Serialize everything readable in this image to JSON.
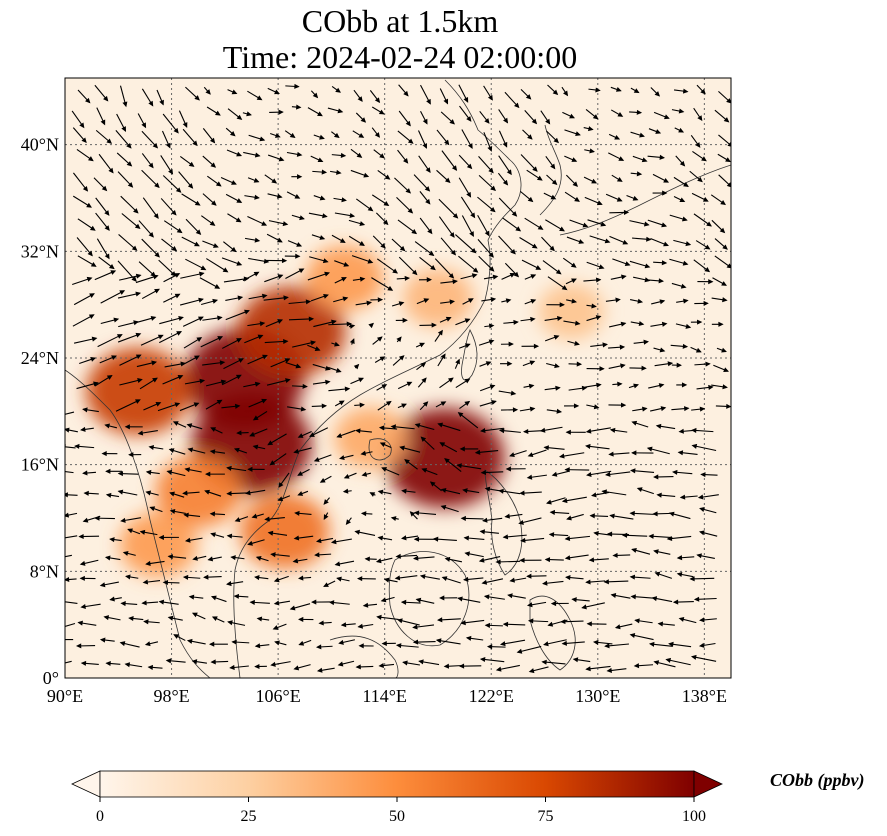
{
  "title_line1": "CObb at 1.5km",
  "title_line2": "Time: 2024-02-24 02:00:00",
  "map": {
    "lon_range": [
      90,
      140
    ],
    "lat_range": [
      0,
      45
    ],
    "lon_ticks": [
      90,
      98,
      106,
      114,
      122,
      130,
      138
    ],
    "lat_ticks": [
      0,
      8,
      16,
      24,
      32,
      40
    ],
    "lon_tick_labels": [
      "90°E",
      "98°E",
      "106°E",
      "114°E",
      "122°E",
      "130°E",
      "138°E"
    ],
    "lat_tick_labels": [
      "0°",
      "8°N",
      "16°N",
      "24°N",
      "32°N",
      "40°N"
    ],
    "gridlines": "dotted"
  },
  "colorbar": {
    "label": "CObb (ppbv)",
    "min": 0,
    "max": 100,
    "tick_labels": [
      "0",
      "25",
      "50",
      "75",
      "100"
    ],
    "colors": [
      "#fff5eb",
      "#fdd0a2",
      "#fd8d3c",
      "#d94801",
      "#7f0000"
    ],
    "extend": "both"
  },
  "plumes": [
    {
      "lon": 103.5,
      "lat": 22.5,
      "value": 100
    },
    {
      "lon": 104.0,
      "lat": 17.5,
      "value": 100
    },
    {
      "lon": 107.0,
      "lat": 26.0,
      "value": 85
    },
    {
      "lon": 95.5,
      "lat": 21.5,
      "value": 80
    },
    {
      "lon": 118.5,
      "lat": 16.5,
      "value": 100
    },
    {
      "lon": 100.0,
      "lat": 14.0,
      "value": 55
    },
    {
      "lon": 106.5,
      "lat": 11.0,
      "value": 60
    },
    {
      "lon": 97.0,
      "lat": 10.0,
      "value": 45
    },
    {
      "lon": 111.0,
      "lat": 30.0,
      "value": 45
    },
    {
      "lon": 118.0,
      "lat": 28.5,
      "value": 35
    },
    {
      "lon": 128.0,
      "lat": 27.5,
      "value": 30
    },
    {
      "lon": 113.0,
      "lat": 18.0,
      "value": 40
    }
  ]
}
